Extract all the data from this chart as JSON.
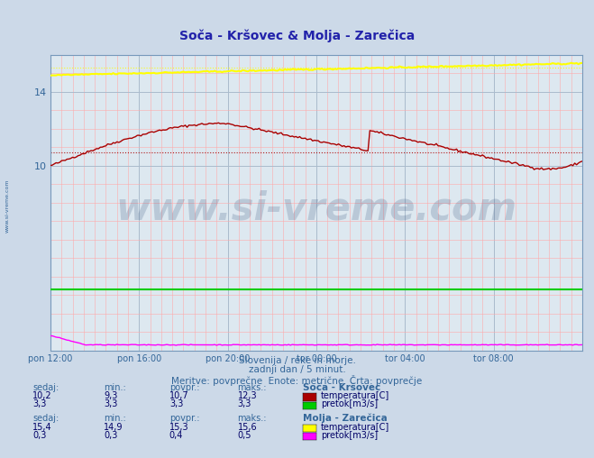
{
  "title": "Soča - Kršovec & Molja - Zarečica",
  "title_color": "#2222aa",
  "bg_color": "#ccd9e8",
  "plot_bg_color": "#dde8f0",
  "xlim": [
    0,
    288
  ],
  "ylim": [
    0,
    16
  ],
  "yticks": [
    10,
    14
  ],
  "ytick_labels": [
    "10",
    "14"
  ],
  "xtick_labels": [
    "pon 12:00",
    "pon 16:00",
    "pon 20:00",
    "tor 00:00",
    "tor 04:00",
    "tor 08:00"
  ],
  "xtick_positions": [
    0,
    48,
    96,
    144,
    192,
    240
  ],
  "xlabel_color": "#336699",
  "ylabel_color": "#336699",
  "watermark_text": "www.si-vreme.com",
  "watermark_color": "#1a3a6a",
  "watermark_alpha": 0.18,
  "subtitle1": "Slovenija / reke in morje.",
  "subtitle2": "zadnji dan / 5 minut.",
  "subtitle3": "Meritve: povprečne  Enote: metrične  Črta: povprečje",
  "subtitle_color": "#336699",
  "avg_line_red_y": 10.7,
  "avg_line_yellow_y": 15.3,
  "n_points": 289,
  "sooca_temp_color": "#aa0000",
  "sooca_pretok_color": "#00cc00",
  "molja_temp_color": "#ffff00",
  "molja_pretok_color": "#ff00ff",
  "stat_label_color": "#336699",
  "stat_value_color": "#000066",
  "soca_name": "Soča - Kršovec",
  "molja_name": "Molja - Zarečica",
  "soca_temp_sedaj": "10,2",
  "soca_temp_min": "9,3",
  "soca_temp_povpr": "10,7",
  "soca_temp_maks": "12,3",
  "soca_pretok_sedaj": "3,3",
  "soca_pretok_min": "3,3",
  "soca_pretok_povpr": "3,3",
  "soca_pretok_maks": "3,3",
  "molja_temp_sedaj": "15,4",
  "molja_temp_min": "14,9",
  "molja_temp_povpr": "15,3",
  "molja_temp_maks": "15,6",
  "molja_pretok_sedaj": "0,3",
  "molja_pretok_min": "0,3",
  "molja_pretok_povpr": "0,4",
  "molja_pretok_maks": "0,5",
  "minor_grid_color_x": "#ffaaaa",
  "minor_grid_color_y": "#ffcccc",
  "major_grid_color": "#aabbcc"
}
